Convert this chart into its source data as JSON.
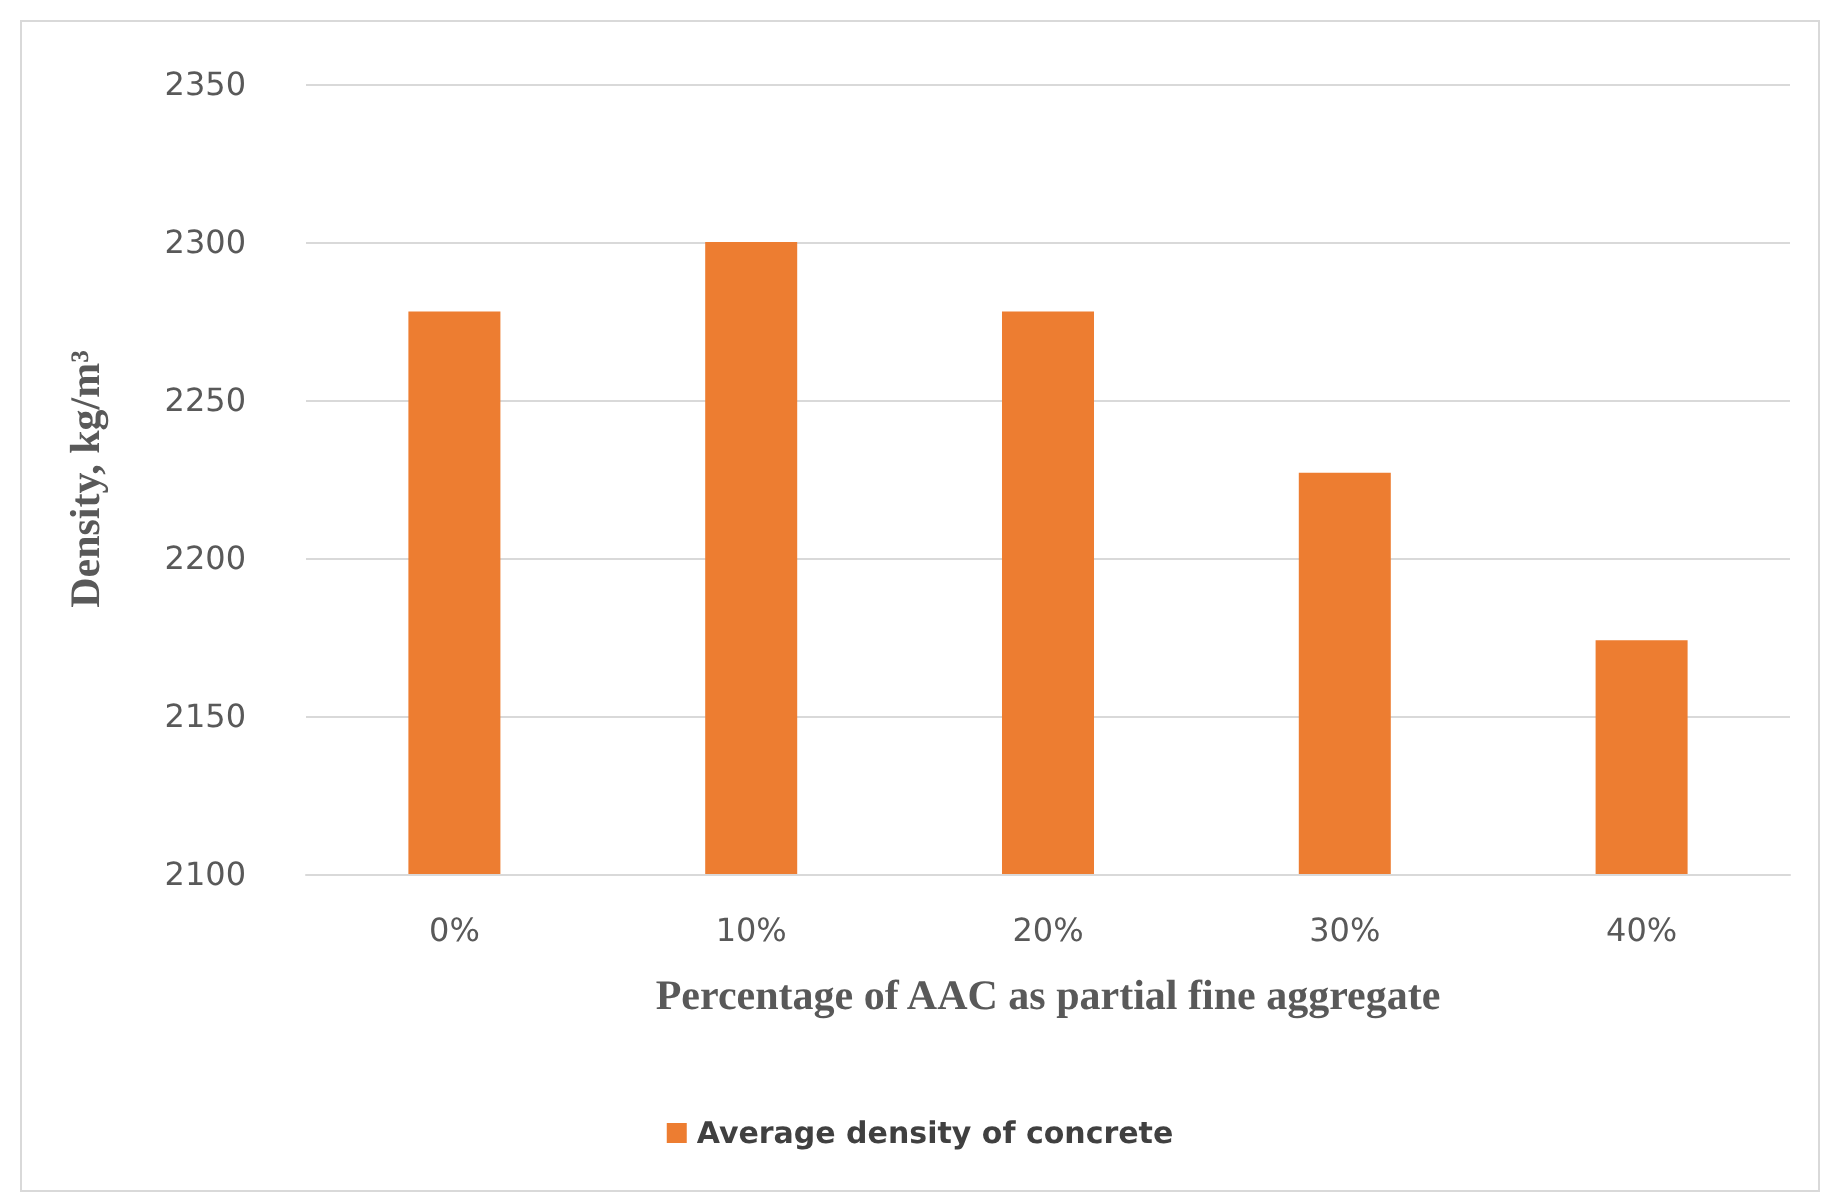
{
  "chart_data": {
    "type": "bar",
    "xlabel": "Percentage of AAC as partial fine aggregate",
    "ylabel": "Density, kg/m³",
    "categories": [
      "0%",
      "10%",
      "20%",
      "30%",
      "40%"
    ],
    "series": [
      {
        "name": "Average density of concrete",
        "color": "#ed7d31",
        "values": [
          2278,
          2300,
          2278,
          2227,
          2174
        ]
      }
    ],
    "ylim": [
      2100,
      2350
    ],
    "yticks": [
      2100,
      2150,
      2200,
      2250,
      2300,
      2350
    ],
    "grid": "y",
    "legend": "bottom"
  }
}
